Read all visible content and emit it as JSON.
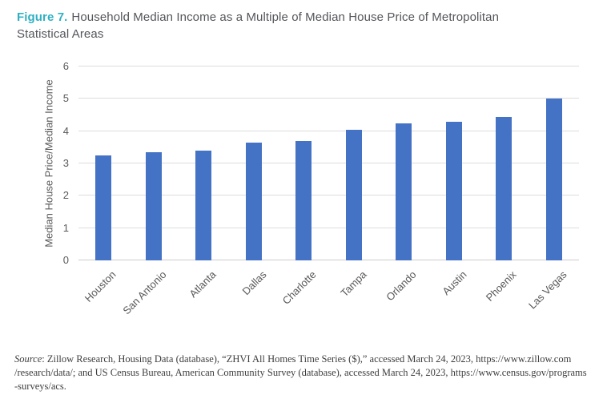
{
  "figure": {
    "label": "Figure 7.",
    "title_line1": "Household Median Income as a Multiple of Median House Price of Metropolitan",
    "title_line2": "Statistical Areas"
  },
  "chart_data": {
    "type": "bar",
    "title": "Household Median Income as a Multiple of Median House Price of Metropolitan Statistical Areas",
    "categories": [
      "Houston",
      "San Antonio",
      "Atlanta",
      "Dallas",
      "Charlotte",
      "Tampa",
      "Orlando",
      "Austin",
      "Phoenix",
      "Las Vegas"
    ],
    "values": [
      3.25,
      3.35,
      3.4,
      3.65,
      3.7,
      4.05,
      4.25,
      4.3,
      4.45,
      5.0
    ],
    "xlabel": "",
    "ylabel": "Median House Price/Median Income",
    "ylim": [
      0,
      6
    ],
    "yticks": [
      0,
      1,
      2,
      3,
      4,
      5,
      6
    ],
    "grid": true,
    "legend": false,
    "bar_color": "#4472C4"
  },
  "source": {
    "label": "Source",
    "line1_rest": ": Zillow Research, Housing Data (database), “ZHVI All Homes Time Series ($),” accessed March 24, 2023, https://www.zillow.com",
    "line2": "/research/data/; and US Census Bureau, American Community Survey (database), accessed March 24, 2023, https://www.census.gov/programs",
    "line3": "-surveys/acs."
  },
  "colors": {
    "figure_label": "#2FB0C3",
    "title_text": "#54565B",
    "bar": "#4472C4",
    "axis_text": "#595959",
    "gridline": "#DDDDDD",
    "background": "#FFFFFF"
  }
}
